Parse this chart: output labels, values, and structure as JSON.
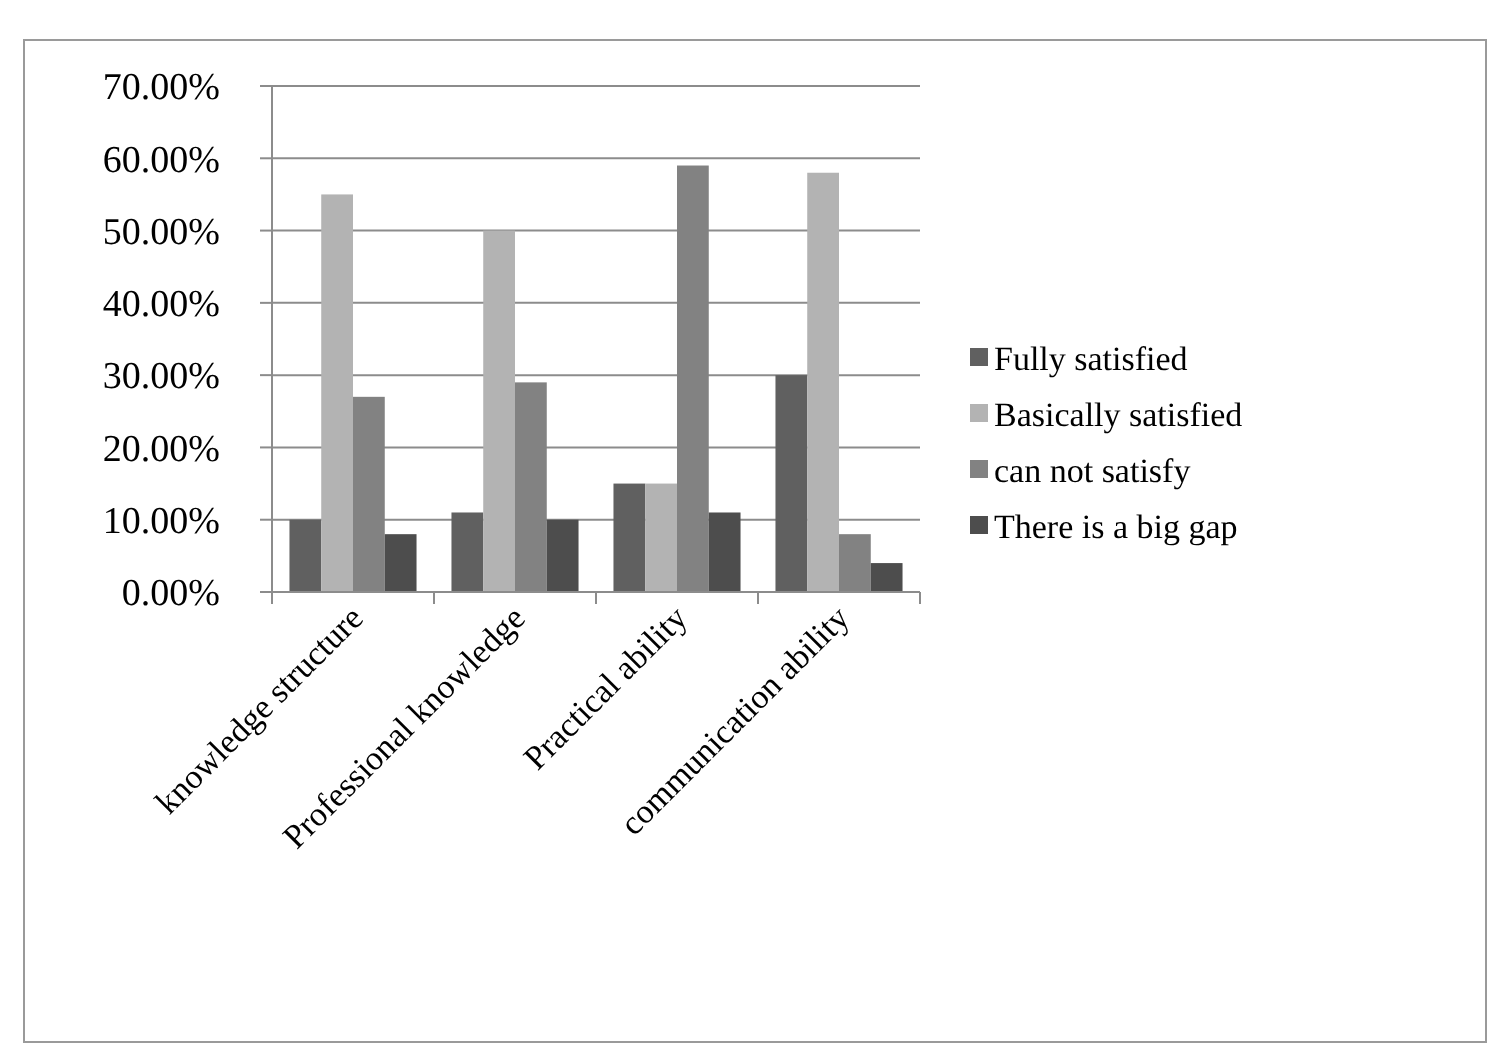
{
  "chart_data": {
    "type": "bar",
    "categories": [
      "knowledge structure",
      "Professional knowledge",
      "Practical ability",
      "communication ability"
    ],
    "series": [
      {
        "name": "Fully satisfied",
        "color": "#606060",
        "values": [
          10,
          11,
          15,
          30
        ]
      },
      {
        "name": "Basically satisfied",
        "color": "#b3b3b3",
        "values": [
          55,
          50,
          15,
          58
        ]
      },
      {
        "name": "can not satisfy",
        "color": "#828282",
        "values": [
          27,
          29,
          59,
          8
        ]
      },
      {
        "name": "There is a big gap",
        "color": "#4d4d4d",
        "values": [
          8,
          10,
          11,
          4
        ]
      }
    ],
    "ylim": [
      0,
      70
    ],
    "yticks": [
      {
        "value": 0,
        "label": "0.00%"
      },
      {
        "value": 10,
        "label": "10.00%"
      },
      {
        "value": 20,
        "label": "20.00%"
      },
      {
        "value": 30,
        "label": "30.00%"
      },
      {
        "value": 40,
        "label": "40.00%"
      },
      {
        "value": 50,
        "label": "50.00%"
      },
      {
        "value": 60,
        "label": "60.00%"
      },
      {
        "value": 70,
        "label": "70.00%"
      }
    ],
    "grid": "y",
    "legend": "right"
  }
}
